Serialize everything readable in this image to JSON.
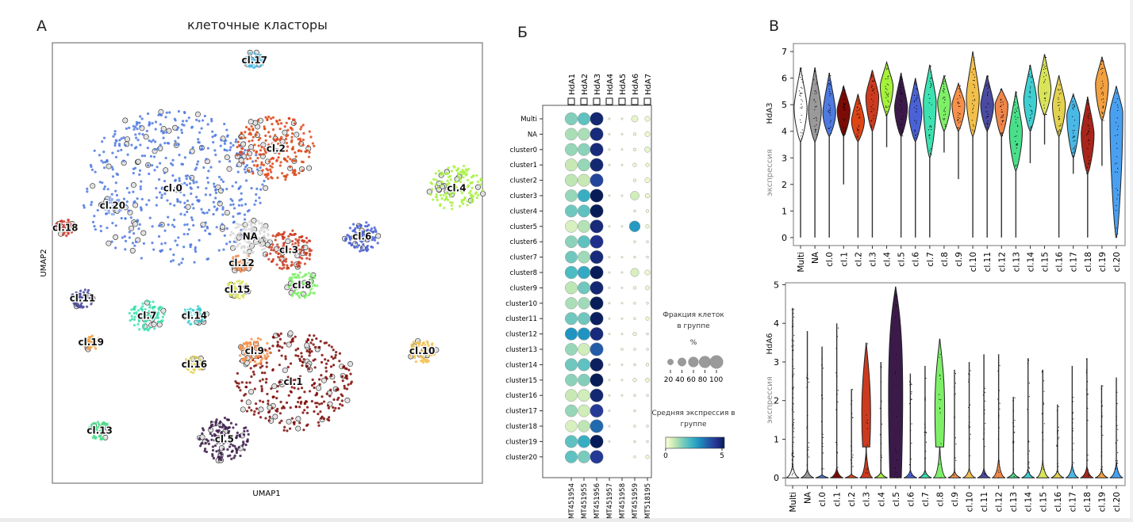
{
  "panels": {
    "a_letter": "А",
    "b_letter": "Б",
    "v_letter": "В"
  },
  "chart_data": [
    {
      "id": "umap",
      "type": "scatter",
      "title": "клеточные класторы",
      "xlabel": "UMAP1",
      "ylabel": "UMAP2",
      "grid": false,
      "clusters": [
        {
          "label": "cl.0",
          "color": "#4d79e0",
          "center": [
            0.28,
            0.67
          ],
          "size": 0.9
        },
        {
          "label": "cl.1",
          "color": "#7c0b06",
          "center": [
            0.56,
            0.23
          ],
          "size": 0.55
        },
        {
          "label": "cl.2",
          "color": "#de4516",
          "center": [
            0.52,
            0.76
          ],
          "size": 0.35
        },
        {
          "label": "cl.3",
          "color": "#cc3b1f",
          "center": [
            0.55,
            0.53
          ],
          "size": 0.18
        },
        {
          "label": "cl.4",
          "color": "#a5f23c",
          "center": [
            0.94,
            0.67
          ],
          "size": 0.22
        },
        {
          "label": "cl.5",
          "color": "#3b1a4a",
          "center": [
            0.4,
            0.1
          ],
          "size": 0.2
        },
        {
          "label": "cl.6",
          "color": "#4a62d6",
          "center": [
            0.72,
            0.56
          ],
          "size": 0.12
        },
        {
          "label": "cl.7",
          "color": "#3ce2b0",
          "center": [
            0.22,
            0.38
          ],
          "size": 0.12
        },
        {
          "label": "cl.8",
          "color": "#7ef068",
          "center": [
            0.58,
            0.45
          ],
          "size": 0.1
        },
        {
          "label": "cl.9",
          "color": "#f6904a",
          "center": [
            0.47,
            0.3
          ],
          "size": 0.1
        },
        {
          "label": "cl.10",
          "color": "#f2c04a",
          "center": [
            0.86,
            0.3
          ],
          "size": 0.08
        },
        {
          "label": "cl.11",
          "color": "#4a4aa0",
          "center": [
            0.07,
            0.42
          ],
          "size": 0.05
        },
        {
          "label": "cl.12",
          "color": "#f0864a",
          "center": [
            0.44,
            0.5
          ],
          "size": 0.05
        },
        {
          "label": "cl.13",
          "color": "#4adf8a",
          "center": [
            0.11,
            0.12
          ],
          "size": 0.05
        },
        {
          "label": "cl.14",
          "color": "#3fcfd0",
          "center": [
            0.33,
            0.38
          ],
          "size": 0.06
        },
        {
          "label": "cl.15",
          "color": "#d9e45a",
          "center": [
            0.43,
            0.44
          ],
          "size": 0.05
        },
        {
          "label": "cl.16",
          "color": "#e3d150",
          "center": [
            0.33,
            0.27
          ],
          "size": 0.04
        },
        {
          "label": "cl.17",
          "color": "#4ab8e6",
          "center": [
            0.47,
            0.96
          ],
          "size": 0.04
        },
        {
          "label": "cl.18",
          "color": "#cc3a2a",
          "center": [
            0.03,
            0.58
          ],
          "size": 0.04
        },
        {
          "label": "cl.19",
          "color": "#f2a040",
          "center": [
            0.09,
            0.32
          ],
          "size": 0.03
        },
        {
          "label": "cl.20",
          "color": "#8aa8ee",
          "center": [
            0.14,
            0.63
          ],
          "size": 0.04
        },
        {
          "label": "NA",
          "color": "#d8d8d8",
          "center": [
            0.46,
            0.56
          ],
          "size": 0.15
        }
      ]
    },
    {
      "id": "dotplot",
      "type": "scatter",
      "subtype": "dotplot",
      "genes_top": [
        "HdA1",
        "HdA2",
        "HdA3",
        "HdA4",
        "HdA5",
        "HdA6",
        "HdA7"
      ],
      "genes_bottom": [
        "MT451954",
        "MT451955",
        "MT451956",
        "MT451957",
        "MT451958",
        "MT451959",
        "MT518195"
      ],
      "groups": [
        "Multi",
        "NA",
        "cluster0",
        "cluster1",
        "cluster2",
        "cluster3",
        "cluster4",
        "cluster5",
        "cluster6",
        "cluster7",
        "cluster8",
        "cluster9",
        "cluster10",
        "cluster11",
        "cluster12",
        "cluster13",
        "cluster14",
        "cluster15",
        "cluster16",
        "cluster17",
        "cluster18",
        "cluster19",
        "cluster20"
      ],
      "fraction_pct": [
        [
          90,
          90,
          100,
          2,
          2,
          25,
          15
        ],
        [
          85,
          85,
          100,
          2,
          2,
          5,
          15
        ],
        [
          88,
          88,
          100,
          2,
          2,
          5,
          18
        ],
        [
          88,
          88,
          100,
          2,
          2,
          8,
          8
        ],
        [
          88,
          88,
          100,
          0,
          0,
          5,
          15
        ],
        [
          85,
          90,
          100,
          2,
          2,
          45,
          12
        ],
        [
          88,
          88,
          100,
          0,
          0,
          3,
          5
        ],
        [
          85,
          88,
          100,
          2,
          2,
          70,
          8
        ],
        [
          85,
          88,
          100,
          0,
          0,
          3,
          3
        ],
        [
          85,
          85,
          100,
          2,
          2,
          3,
          3
        ],
        [
          92,
          92,
          100,
          2,
          2,
          40,
          15
        ],
        [
          88,
          88,
          100,
          2,
          2,
          5,
          10
        ],
        [
          80,
          80,
          100,
          2,
          2,
          3,
          3
        ],
        [
          88,
          88,
          100,
          2,
          2,
          3,
          8
        ],
        [
          90,
          90,
          100,
          2,
          2,
          8,
          3
        ],
        [
          85,
          85,
          100,
          0,
          3,
          3,
          3
        ],
        [
          90,
          90,
          100,
          2,
          2,
          3,
          5
        ],
        [
          85,
          85,
          100,
          2,
          2,
          8,
          10
        ],
        [
          85,
          85,
          100,
          2,
          2,
          3,
          3
        ],
        [
          85,
          85,
          100,
          2,
          0,
          3,
          0
        ],
        [
          80,
          80,
          100,
          2,
          0,
          3,
          3
        ],
        [
          90,
          90,
          100,
          2,
          0,
          3,
          3
        ],
        [
          88,
          88,
          100,
          0,
          0,
          3,
          8
        ]
      ],
      "mean_expr": [
        [
          1.4,
          1.8,
          4.7,
          0,
          0,
          0.3,
          0.2
        ],
        [
          1.0,
          1.0,
          4.6,
          0,
          0,
          0.1,
          0.2
        ],
        [
          1.2,
          1.3,
          4.6,
          0,
          0,
          0.1,
          0.3
        ],
        [
          0.7,
          1.2,
          4.7,
          0,
          0,
          0.2,
          0.2
        ],
        [
          0.8,
          0.7,
          4.0,
          0,
          0,
          0.1,
          0.2
        ],
        [
          1.2,
          2.3,
          5.0,
          0,
          0,
          0.6,
          0.2
        ],
        [
          1.6,
          1.8,
          5.6,
          0,
          0,
          0.1,
          0.1
        ],
        [
          0.5,
          0.9,
          4.6,
          0,
          0,
          2.7,
          0.2
        ],
        [
          1.3,
          1.8,
          4.4,
          0,
          0,
          0.1,
          0.1
        ],
        [
          1.6,
          1.1,
          4.6,
          0,
          0,
          0.1,
          0.1
        ],
        [
          2.0,
          2.4,
          5.1,
          0,
          0,
          0.5,
          0.2
        ],
        [
          0.8,
          1.6,
          4.7,
          0,
          0,
          0.1,
          0.2
        ],
        [
          1.0,
          1.1,
          5.1,
          0,
          0,
          0.1,
          0.1
        ],
        [
          1.6,
          1.6,
          4.9,
          0,
          0,
          0.1,
          0.2
        ],
        [
          2.8,
          2.8,
          4.6,
          0,
          0,
          0.2,
          0.1
        ],
        [
          1.2,
          0.6,
          3.6,
          0,
          0,
          0.1,
          0.1
        ],
        [
          1.6,
          1.8,
          4.9,
          0,
          0,
          0.1,
          0.1
        ],
        [
          1.3,
          1.4,
          5.4,
          0,
          0,
          0.2,
          0.2
        ],
        [
          0.7,
          0.6,
          4.7,
          0,
          0,
          0.1,
          0.1
        ],
        [
          1.2,
          0.6,
          4.2,
          0,
          0,
          0.1,
          0.1
        ],
        [
          0.5,
          0.8,
          3.4,
          0,
          0,
          0.1,
          0.1
        ],
        [
          1.8,
          2.3,
          5.6,
          0,
          0,
          0.1,
          0.1
        ],
        [
          1.8,
          1.5,
          4.2,
          0,
          0,
          0.1,
          0.2
        ]
      ],
      "size_legend": {
        "title": "Фракция клеток\nв группе",
        "unit": "%",
        "values": [
          20,
          40,
          60,
          80,
          100
        ],
        "tick_labels": [
          "20",
          "40",
          "60",
          "80",
          "100"
        ]
      },
      "color_legend": {
        "title": "Средняя экспрессия в\nгруппе",
        "min": 0,
        "max": 5,
        "tick_labels": [
          "0",
          "5"
        ],
        "colormap": [
          "#ffffd9",
          "#c7e9b4",
          "#7fcdbb",
          "#41b6c4",
          "#1d91c0",
          "#225ea8",
          "#253494",
          "#081d58"
        ]
      }
    },
    {
      "id": "violin_hda3",
      "type": "scatter",
      "subtype": "violin",
      "ylabel_gene": "HdA3",
      "ylabel": "экспрессия",
      "ylim": [
        -0.3,
        7.3
      ],
      "yticks": [
        0,
        1,
        2,
        3,
        4,
        5,
        6,
        7
      ],
      "categories": [
        "Multi",
        "NA",
        "cl.0",
        "cl.1",
        "cl.2",
        "cl.3",
        "cl.4",
        "cl.5",
        "cl.6",
        "cl.7",
        "cl.8",
        "cl.9",
        "cl.10",
        "cl.11",
        "cl.12",
        "cl.13",
        "cl.14",
        "cl.15",
        "cl.16",
        "cl.17",
        "cl.18",
        "cl.19",
        "cl.20"
      ],
      "colors": [
        "#ffffff",
        "#9a9a9a",
        "#4d79e0",
        "#7c0b06",
        "#de4516",
        "#cc3b1f",
        "#a5f23c",
        "#3b1a4a",
        "#4a62d6",
        "#3ce2b0",
        "#7ef068",
        "#f6904a",
        "#f2c04a",
        "#4a4aa0",
        "#f0864a",
        "#4adf8a",
        "#3fcfd0",
        "#d9e45a",
        "#e3d150",
        "#4ab8e6",
        "#a8251b",
        "#f2a040",
        "#4aa0f0"
      ],
      "median": [
        4.9,
        4.8,
        4.7,
        4.8,
        4.4,
        5.3,
        5.7,
        4.9,
        4.7,
        5.1,
        5.1,
        5.0,
        5.3,
        5.0,
        5.0,
        4.0,
        5.2,
        5.6,
        5.0,
        4.6,
        3.9,
        5.8,
        4.7
      ],
      "max": [
        6.4,
        6.4,
        6.2,
        5.7,
        5.4,
        6.3,
        6.6,
        6.2,
        6.0,
        6.5,
        6.1,
        5.8,
        7.0,
        6.1,
        5.6,
        5.5,
        6.5,
        6.9,
        6.1,
        5.4,
        5.3,
        6.8,
        5.7
      ],
      "min": [
        0,
        0,
        0,
        2.0,
        0,
        0,
        3.4,
        0,
        0,
        0,
        3.2,
        2.2,
        0,
        0,
        0,
        0,
        2.8,
        3.5,
        0,
        2.4,
        0,
        2.7,
        0
      ],
      "body_low": [
        3.6,
        3.6,
        3.8,
        3.8,
        3.6,
        4.0,
        4.6,
        3.8,
        3.6,
        3.0,
        4.0,
        4.0,
        3.8,
        4.0,
        3.8,
        2.5,
        4.0,
        4.6,
        3.8,
        3.0,
        2.4,
        4.4,
        0.0
      ]
    },
    {
      "id": "violin_hda6",
      "type": "scatter",
      "subtype": "violin",
      "ylabel_gene": "HdA6",
      "ylabel": "экспрессия",
      "ylim": [
        -0.2,
        5.05
      ],
      "yticks": [
        0,
        1,
        2,
        3,
        4,
        5
      ],
      "categories": [
        "Multi",
        "NA",
        "cl.0",
        "cl.1",
        "cl.2",
        "cl.3",
        "cl.4",
        "cl.5",
        "cl.6",
        "cl.7",
        "cl.8",
        "cl.9",
        "cl.10",
        "cl.11",
        "cl.12",
        "cl.13",
        "cl.14",
        "cl.15",
        "cl.16",
        "cl.17",
        "cl.18",
        "cl.19",
        "cl.20"
      ],
      "colors": [
        "#ffffff",
        "#9a9a9a",
        "#4d79e0",
        "#7c0b06",
        "#de4516",
        "#cc3b1f",
        "#a5f23c",
        "#3b1a4a",
        "#4a62d6",
        "#3ce2b0",
        "#7ef068",
        "#f6904a",
        "#f2c04a",
        "#4a4aa0",
        "#f0864a",
        "#4adf8a",
        "#3fcfd0",
        "#d9e45a",
        "#e3d150",
        "#4ab8e6",
        "#a8251b",
        "#f2a040",
        "#4aa0f0"
      ],
      "max": [
        4.4,
        3.8,
        3.4,
        4.0,
        2.3,
        3.5,
        3.0,
        4.95,
        2.7,
        2.9,
        3.6,
        2.8,
        3.0,
        3.2,
        3.2,
        2.1,
        3.1,
        2.8,
        1.9,
        2.9,
        3.1,
        2.4,
        2.6
      ],
      "base_height": [
        0.35,
        0.22,
        0.08,
        0.25,
        0.1,
        0.75,
        0.15,
        0,
        0.2,
        0.2,
        0.8,
        0.18,
        0.25,
        0.25,
        0.5,
        0.15,
        0.2,
        0.45,
        0.2,
        0.35,
        0.3,
        0.2,
        0.4
      ],
      "body": [
        null,
        null,
        null,
        null,
        null,
        {
          "from": 0.8,
          "to": 3.5,
          "peak": 2.0,
          "w": 0.5
        },
        null,
        {
          "from": 0,
          "to": 4.95,
          "peak": 3.4,
          "w": 0.8
        },
        null,
        null,
        {
          "from": 0.8,
          "to": 3.6,
          "peak": 2.2,
          "w": 0.55
        },
        null,
        null,
        null,
        null,
        null,
        null,
        null,
        null,
        null,
        null,
        null,
        null
      ]
    }
  ]
}
